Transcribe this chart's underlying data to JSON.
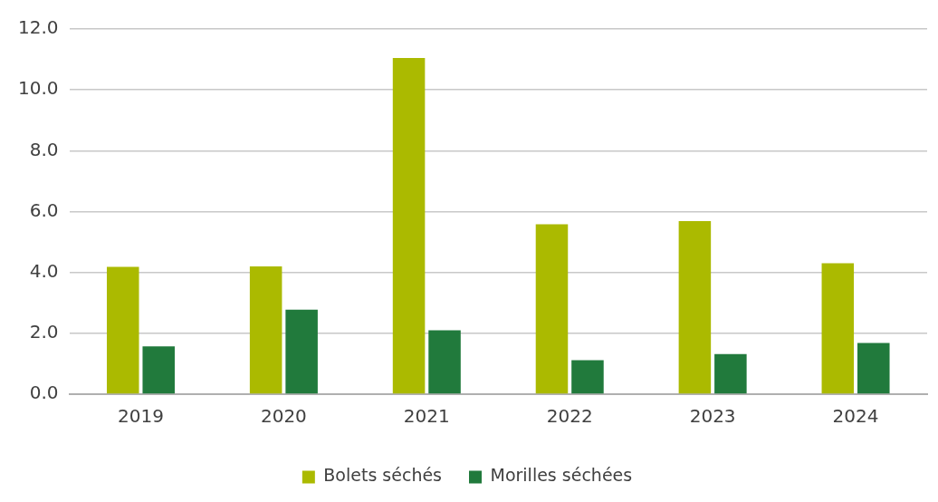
{
  "chart_data": {
    "type": "bar",
    "categories": [
      "2019",
      "2020",
      "2021",
      "2022",
      "2023",
      "2024"
    ],
    "series": [
      {
        "name": "Bolets séchés",
        "color": "#abba00",
        "values": [
          4.18,
          4.2,
          11.05,
          5.58,
          5.69,
          4.3
        ]
      },
      {
        "name": "Morilles séchées",
        "color": "#217a3c",
        "values": [
          1.57,
          2.78,
          2.1,
          1.12,
          1.32,
          1.68
        ]
      }
    ],
    "ylim": [
      0,
      12
    ],
    "yticks": [
      {
        "value": 0,
        "label": "0.0"
      },
      {
        "value": 2,
        "label": "2.0"
      },
      {
        "value": 4,
        "label": "4.0"
      },
      {
        "value": 6,
        "label": "6.0"
      },
      {
        "value": 8,
        "label": "8.0"
      },
      {
        "value": 10,
        "label": "10.0"
      },
      {
        "value": 12,
        "label": "12.0"
      }
    ],
    "grid": "y",
    "legend": "bottom"
  }
}
